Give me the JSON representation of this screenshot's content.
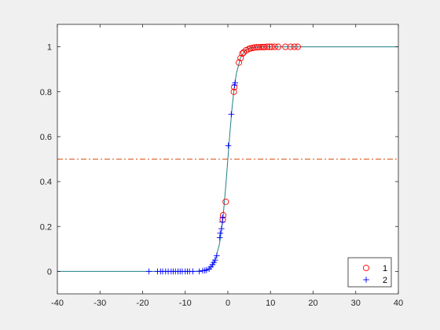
{
  "chart_data": {
    "type": "scatter",
    "title": "",
    "xlabel": "",
    "ylabel": "",
    "xlim": [
      -40,
      40
    ],
    "ylim": [
      -0.1,
      1.1
    ],
    "xticks": [
      -40,
      -30,
      -20,
      -10,
      0,
      10,
      20,
      30,
      40
    ],
    "yticks": [
      0,
      0.2,
      0.4,
      0.6,
      0.8,
      1
    ],
    "xtick_labels": [
      "-40",
      "-30",
      "-20",
      "-10",
      "0",
      "10",
      "20",
      "30",
      "40"
    ],
    "ytick_labels": [
      "0",
      "0.2",
      "0.4",
      "0.6",
      "0.8",
      "1"
    ],
    "grid": false,
    "legend_position": "bottom-right",
    "curve": {
      "type": "sigmoid",
      "color": "#1f7f8a",
      "x_range": [
        -40,
        40
      ],
      "points": [
        [
          -40,
          0
        ],
        [
          -8,
          0.00034
        ],
        [
          -6,
          0.0025
        ],
        [
          -5,
          0.0067
        ],
        [
          -4,
          0.018
        ],
        [
          -3,
          0.047
        ],
        [
          -2,
          0.119
        ],
        [
          -1.5,
          0.182
        ],
        [
          -1,
          0.269
        ],
        [
          -0.5,
          0.378
        ],
        [
          0,
          0.5
        ],
        [
          0.5,
          0.622
        ],
        [
          1,
          0.731
        ],
        [
          1.5,
          0.818
        ],
        [
          2,
          0.881
        ],
        [
          3,
          0.953
        ],
        [
          4,
          0.982
        ],
        [
          5,
          0.9933
        ],
        [
          6,
          0.9975
        ],
        [
          8,
          0.99966
        ],
        [
          40,
          1
        ]
      ]
    },
    "threshold_line": {
      "y": 0.5,
      "style": "dash-dot",
      "color": "#d95319"
    },
    "series": [
      {
        "name": "1",
        "marker": "circle",
        "color": "#ff0000",
        "points": [
          [
            -1.2,
            0.23
          ],
          [
            -1.1,
            0.25
          ],
          [
            -0.5,
            0.31
          ],
          [
            1.4,
            0.8
          ],
          [
            1.5,
            0.82
          ],
          [
            2.6,
            0.93
          ],
          [
            3.0,
            0.95
          ],
          [
            3.4,
            0.97
          ],
          [
            3.7,
            0.975
          ],
          [
            4.3,
            0.985
          ],
          [
            4.9,
            0.99
          ],
          [
            5.3,
            0.993
          ],
          [
            5.8,
            0.995
          ],
          [
            6.3,
            0.997
          ],
          [
            6.8,
            0.998
          ],
          [
            7.2,
            0.998
          ],
          [
            7.8,
            0.999
          ],
          [
            8.3,
            0.999
          ],
          [
            8.6,
            0.999
          ],
          [
            9.2,
            1.0
          ],
          [
            9.8,
            1.0
          ],
          [
            10.3,
            1.0
          ],
          [
            11.0,
            1.0
          ],
          [
            11.8,
            1.0
          ],
          [
            13.5,
            1.0
          ],
          [
            14.7,
            1.0
          ],
          [
            15.6,
            1.0
          ],
          [
            16.4,
            1.0
          ]
        ]
      },
      {
        "name": "2",
        "marker": "plus",
        "color": "#0000ff",
        "points": [
          [
            -18.5,
            0.0
          ],
          [
            -16.5,
            0.0
          ],
          [
            -15.8,
            0.0
          ],
          [
            -15.3,
            0.0
          ],
          [
            -14.6,
            0.0
          ],
          [
            -14.0,
            0.0
          ],
          [
            -13.3,
            0.0
          ],
          [
            -12.8,
            0.0
          ],
          [
            -12.3,
            0.0
          ],
          [
            -11.7,
            0.0
          ],
          [
            -11.2,
            0.0
          ],
          [
            -10.7,
            0.0
          ],
          [
            -10.0,
            0.0
          ],
          [
            -9.5,
            0.0
          ],
          [
            -9.0,
            0.0
          ],
          [
            -8.2,
            0.0
          ],
          [
            -6.7,
            0.0
          ],
          [
            -5.9,
            0.003
          ],
          [
            -5.4,
            0.004
          ],
          [
            -5.0,
            0.006
          ],
          [
            -4.4,
            0.011
          ],
          [
            -4.0,
            0.02
          ],
          [
            -3.6,
            0.03
          ],
          [
            -3.3,
            0.04
          ],
          [
            -3.0,
            0.05
          ],
          [
            -2.6,
            0.07
          ],
          [
            -1.9,
            0.15
          ],
          [
            -1.8,
            0.17
          ],
          [
            -1.5,
            0.19
          ],
          [
            -1.3,
            0.22
          ],
          [
            -1.2,
            0.24
          ],
          [
            0.1,
            0.56
          ],
          [
            0.8,
            0.7
          ],
          [
            1.6,
            0.83
          ],
          [
            1.7,
            0.84
          ]
        ]
      }
    ]
  }
}
